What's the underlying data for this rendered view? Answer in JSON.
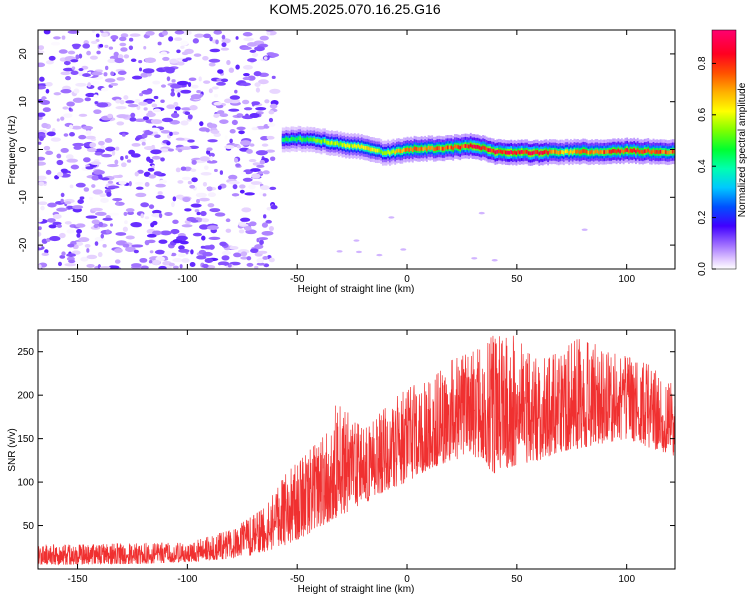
{
  "title": "KOM5.2025.070.16.25.G16",
  "chart_data": [
    {
      "type": "heatmap",
      "xlabel": "Height of straight line (km)",
      "ylabel": "Frequency (Hz)",
      "xlim": [
        -168,
        122
      ],
      "ylim": [
        -25,
        25
      ],
      "xticks": [
        -150,
        -100,
        -50,
        0,
        50,
        100
      ],
      "yticks": [
        -20,
        -10,
        0,
        10,
        20
      ],
      "colorbar": {
        "label": "Normalized spectral amplitude",
        "range": [
          0,
          0.93
        ],
        "ticks": [
          0.0,
          0.2,
          0.4,
          0.6,
          0.8
        ],
        "colormap": "rainbow (white-violet-blue-cyan-green-yellow-orange-red-magenta)"
      },
      "ridge": {
        "description": "narrow band near 0 Hz from about -57 km to 122 km",
        "x": [
          -57,
          -50,
          -40,
          -30,
          -20,
          -10,
          0,
          10,
          20,
          30,
          40,
          50,
          60,
          70,
          80,
          90,
          100,
          110,
          122
        ],
        "frequency": [
          2.0,
          2.2,
          1.8,
          1.0,
          0.5,
          -0.8,
          0.0,
          0.2,
          0.4,
          0.8,
          -0.5,
          -0.6,
          -0.7,
          -0.5,
          -0.5,
          -0.4,
          -0.3,
          -0.4,
          -0.5
        ],
        "amplitude": [
          0.45,
          0.5,
          0.55,
          0.6,
          0.65,
          0.6,
          0.75,
          0.78,
          0.8,
          0.85,
          0.88,
          0.9,
          0.9,
          0.72,
          0.75,
          0.8,
          0.85,
          0.82,
          0.78
        ]
      },
      "noise_region": {
        "description": "scattered low-amplitude speckles for heights below about -60 km",
        "x_range": [
          -168,
          -60
        ],
        "amplitude_range": [
          0.0,
          0.15
        ]
      }
    },
    {
      "type": "line",
      "xlabel": "Height of straight line (km)",
      "ylabel": "SNR (v/v)",
      "xlim": [
        -168,
        122
      ],
      "ylim": [
        0,
        275
      ],
      "xticks": [
        -150,
        -100,
        -50,
        0,
        50,
        100
      ],
      "yticks": [
        50,
        100,
        150,
        200,
        250
      ],
      "color": "#f03030",
      "envelope": {
        "x": [
          -168,
          -150,
          -120,
          -100,
          -80,
          -65,
          -55,
          -45,
          -35,
          -30,
          -20,
          -10,
          0,
          10,
          20,
          30,
          40,
          50,
          60,
          70,
          80,
          90,
          100,
          110,
          122
        ],
        "low": [
          5,
          5,
          6,
          8,
          12,
          18,
          28,
          40,
          55,
          62,
          75,
          90,
          100,
          115,
          125,
          130,
          110,
          120,
          125,
          135,
          140,
          145,
          150,
          140,
          130
        ],
        "high": [
          28,
          28,
          30,
          30,
          45,
          70,
          110,
          135,
          160,
          190,
          160,
          185,
          210,
          215,
          240,
          250,
          270,
          272,
          240,
          250,
          270,
          250,
          245,
          235,
          210
        ]
      }
    }
  ]
}
